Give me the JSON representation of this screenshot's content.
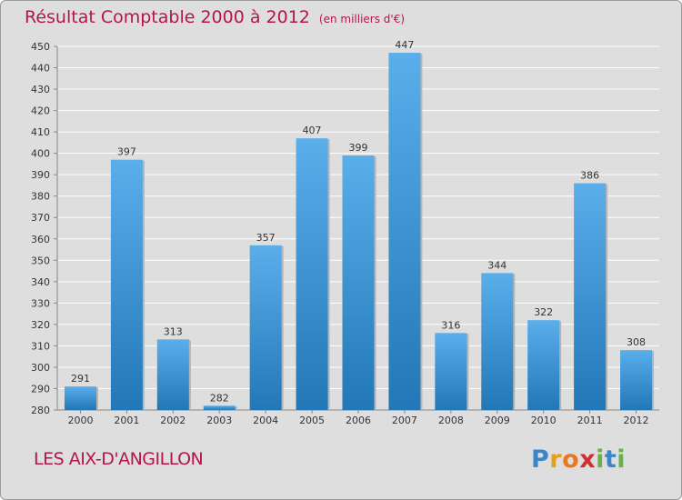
{
  "header": {
    "title": "Résultat Comptable 2000 à 2012",
    "subtitle": "(en milliers d'€)"
  },
  "footer": {
    "commune": "LES AIX-D'ANGILLON",
    "logo": "Proxiti"
  },
  "colors": {
    "bar_top": "#5aaeea",
    "bar_bottom": "#2277b7",
    "title": "#b3164a",
    "background": "#dedede",
    "grid": "#ffffff"
  },
  "chart_data": {
    "type": "bar",
    "title": "Résultat Comptable 2000 à 2012",
    "subtitle": "(en milliers d'€)",
    "categories": [
      "2000",
      "2001",
      "2002",
      "2003",
      "2004",
      "2005",
      "2006",
      "2007",
      "2008",
      "2009",
      "2010",
      "2011",
      "2012"
    ],
    "values": [
      291,
      397,
      313,
      282,
      357,
      407,
      399,
      447,
      316,
      344,
      322,
      386,
      308
    ],
    "ylim": [
      280,
      450
    ],
    "yticks": [
      280,
      290,
      300,
      310,
      320,
      330,
      340,
      350,
      360,
      370,
      380,
      390,
      400,
      410,
      420,
      430,
      440,
      450
    ],
    "grid": true,
    "xlabel": "",
    "ylabel": ""
  }
}
